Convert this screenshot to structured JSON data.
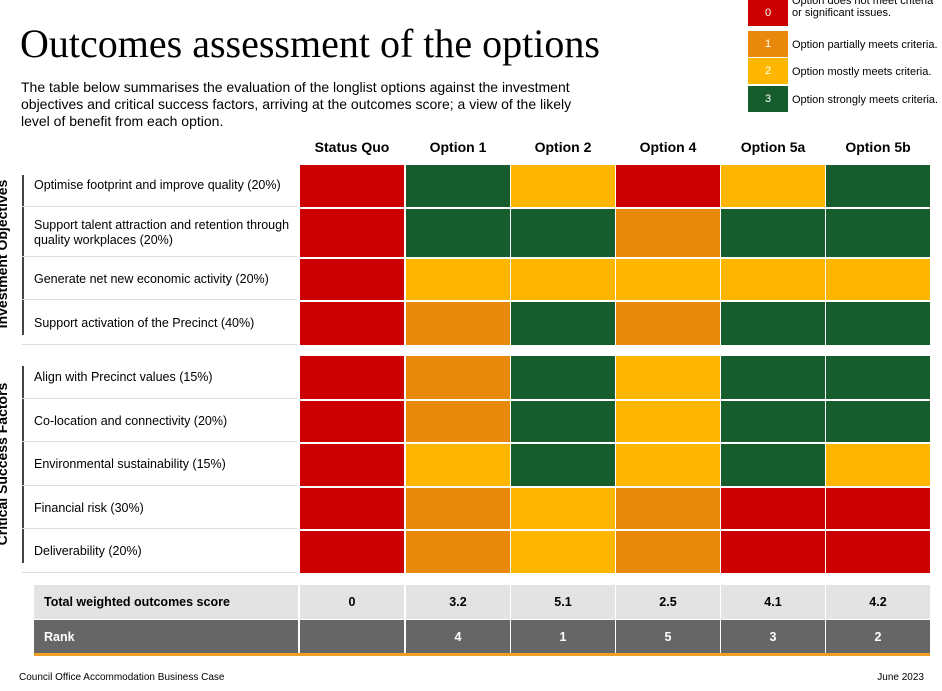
{
  "header": {
    "title": "Outcomes assessment of the options",
    "intro": "The table below summarises the evaluation of the longlist options against the investment objectives and critical success factors, arriving at the outcomes score; a view of the likely level of benefit from each option."
  },
  "legend": [
    {
      "score": 0,
      "color": "#cc0000",
      "label": "Option does not meet criteria or significant issues."
    },
    {
      "score": 1,
      "color": "#e8890c",
      "label": "Option partially meets criteria."
    },
    {
      "score": 2,
      "color": "#ffb600",
      "label": "Option mostly meets criteria."
    },
    {
      "score": 3,
      "color": "#175c2c",
      "label": "Option strongly meets criteria."
    }
  ],
  "table": {
    "columns": [
      "Status Quo",
      "Option 1",
      "Option 2",
      "Option 4",
      "Option 5a",
      "Option 5b"
    ],
    "groups": [
      {
        "name": "Investment Objectives",
        "rows": [
          {
            "label": "Optimise footprint and improve quality (20%)",
            "scores": [
              0,
              3,
              2,
              0,
              2,
              3
            ]
          },
          {
            "label": "Support talent attraction and retention through quality workplaces (20%)",
            "scores": [
              0,
              3,
              3,
              1,
              3,
              3
            ]
          },
          {
            "label": "Generate net new economic activity (20%)",
            "scores": [
              0,
              2,
              2,
              2,
              2,
              2
            ]
          },
          {
            "label": "Support activation of the Precinct (40%)",
            "scores": [
              0,
              1,
              3,
              1,
              3,
              3
            ]
          }
        ]
      },
      {
        "name": "Critical Success Factors",
        "rows": [
          {
            "label": "Align with Precinct values (15%)",
            "scores": [
              0,
              1,
              3,
              2,
              3,
              3
            ]
          },
          {
            "label": "Co-location and connectivity (20%)",
            "scores": [
              0,
              1,
              3,
              2,
              3,
              3
            ]
          },
          {
            "label": "Environmental sustainability (15%)",
            "scores": [
              0,
              2,
              3,
              2,
              3,
              2
            ]
          },
          {
            "label": "Financial risk (30%)",
            "scores": [
              0,
              1,
              2,
              1,
              0,
              0
            ]
          },
          {
            "label": "Deliverability (20%)",
            "scores": [
              0,
              1,
              2,
              1,
              0,
              0
            ]
          }
        ]
      }
    ],
    "total": {
      "label": "Total weighted outcomes score",
      "values": [
        0,
        3.2,
        5.1,
        2.5,
        4.1,
        4.2
      ]
    },
    "rank": {
      "label": "Rank",
      "values": [
        null,
        4,
        1,
        5,
        3,
        2
      ]
    }
  },
  "footer": {
    "left": "Council Office Accommodation Business Case",
    "right": "June 2023"
  }
}
